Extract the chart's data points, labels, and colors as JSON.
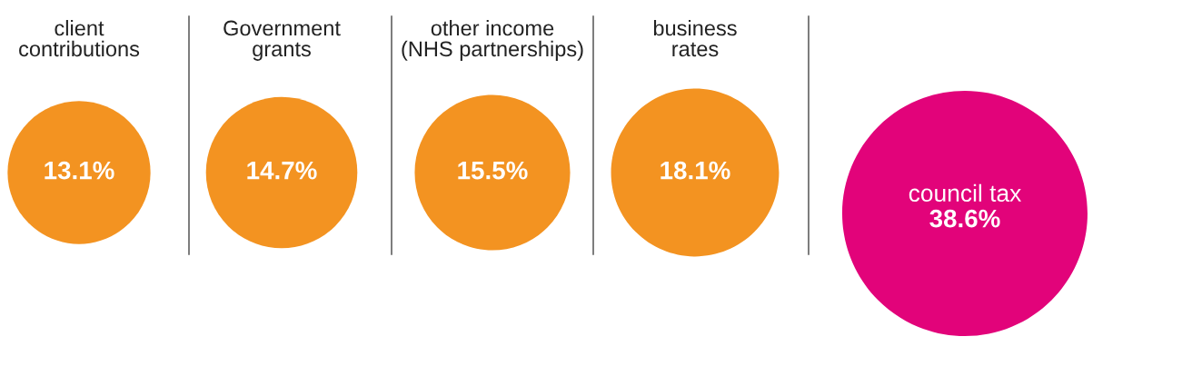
{
  "chart_data": {
    "type": "other",
    "categories": [
      "client\ncontributions",
      "Government\ngrants",
      "other income\n(NHS partnerships)",
      "business\nrates",
      "council tax"
    ],
    "values": [
      13.1,
      14.7,
      15.5,
      18.1,
      38.6
    ],
    "value_labels": [
      "13.1%",
      "14.7%",
      "15.5%",
      "18.1%",
      "38.6%"
    ],
    "colors": [
      "#f39321",
      "#f39321",
      "#f39321",
      "#f39321",
      "#e2037a"
    ]
  }
}
